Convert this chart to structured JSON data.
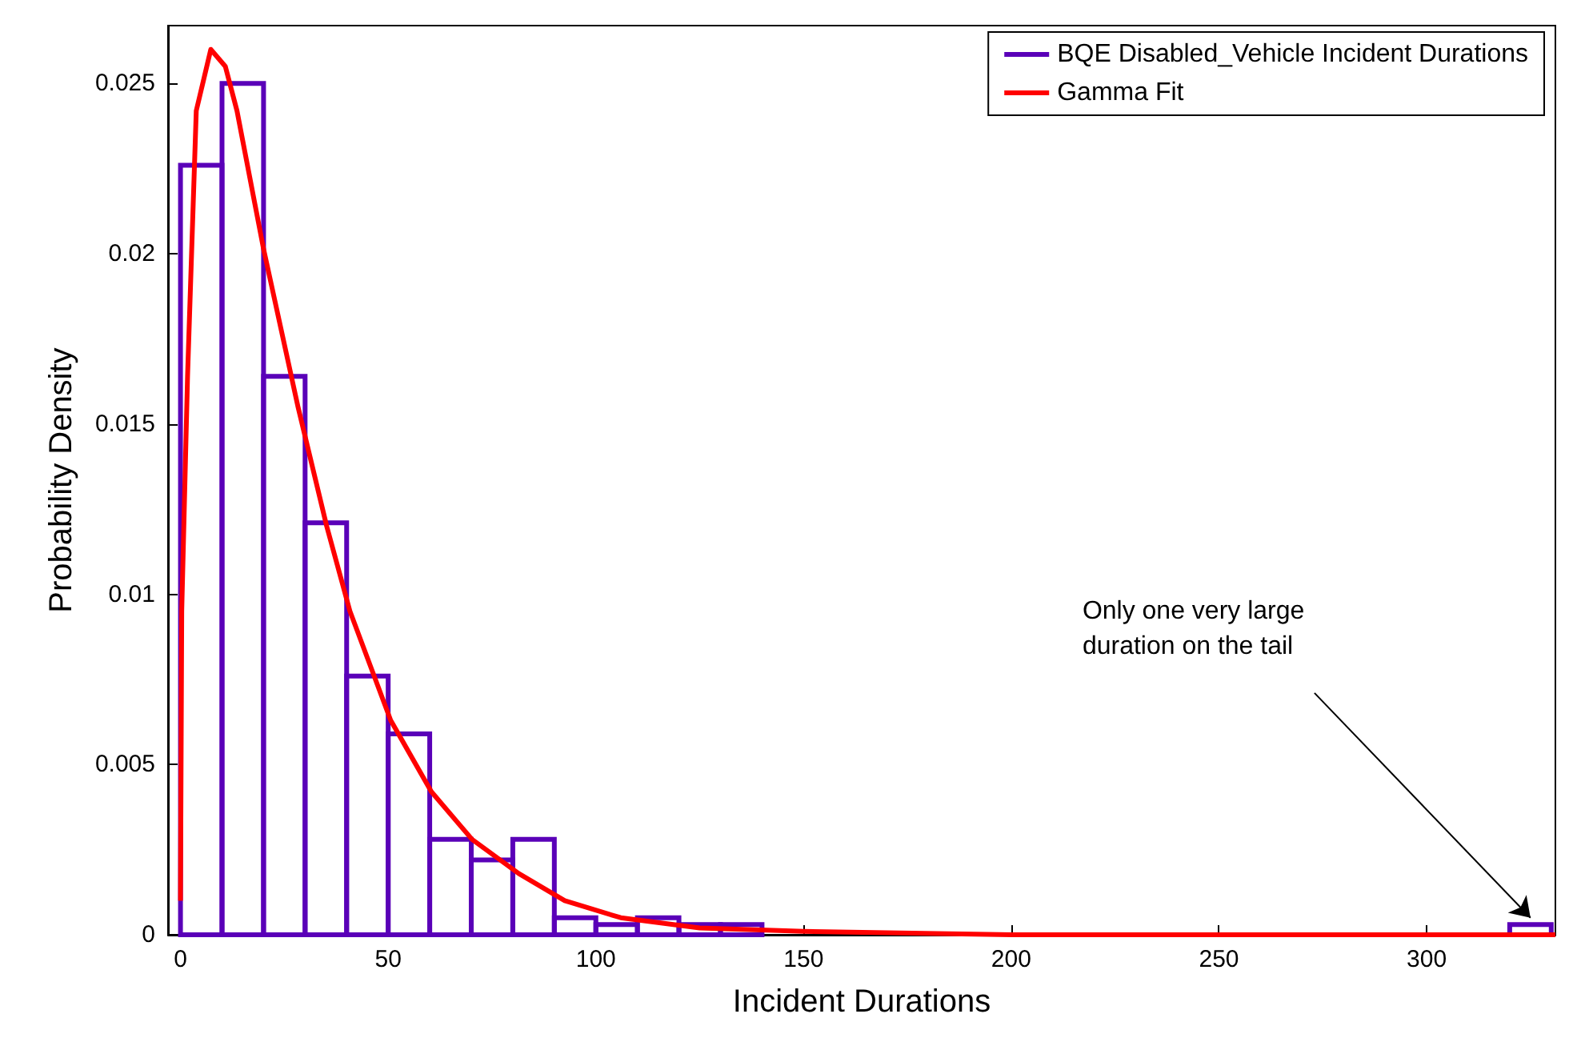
{
  "chart_data": {
    "type": "histogram",
    "xlabel": "Incident Durations",
    "ylabel": "Probability Density",
    "bins": [
      0,
      10,
      20,
      30,
      40,
      50,
      60,
      70,
      80,
      90,
      100,
      110,
      120,
      130,
      140,
      150,
      160,
      170,
      180,
      190,
      200,
      210,
      220,
      230,
      240,
      250,
      260,
      270,
      280,
      290,
      300,
      310,
      320,
      330
    ],
    "series": [
      {
        "name": "BQE Disabled_Vehicle Incident Durations",
        "color": "#5a00b8",
        "values": [
          0.0226,
          0.025,
          0.0164,
          0.0121,
          0.0076,
          0.0059,
          0.0028,
          0.0022,
          0.0028,
          0.0005,
          0.0003,
          0.0005,
          0.0003,
          0.0003,
          0,
          0,
          0,
          0,
          0,
          0,
          0,
          0,
          0,
          0,
          0,
          0,
          0,
          0,
          0,
          0,
          0,
          0,
          0.0003
        ]
      },
      {
        "type": "line",
        "name": "Gamma Fit",
        "color": "#ff0000",
        "x": [
          0,
          0.3,
          1.7,
          3.8,
          7.3,
          10.8,
          13.6,
          19.9,
          28.3,
          35.2,
          40.8,
          50.6,
          60.4,
          70.2,
          81.4,
          92.5,
          106,
          125,
          150,
          200,
          250,
          331
        ],
        "values": [
          0.001,
          0.0095,
          0.0164,
          0.0242,
          0.026,
          0.0255,
          0.0242,
          0.0202,
          0.0155,
          0.012,
          0.0095,
          0.0063,
          0.0042,
          0.0028,
          0.0018,
          0.001,
          0.0005,
          0.0002,
          0.0001,
          0,
          0,
          0
        ]
      }
    ],
    "xlim": [
      -3,
      331
    ],
    "ylim": [
      0,
      0.0267
    ],
    "xticks": [
      0,
      50,
      100,
      150,
      200,
      250,
      300
    ],
    "yticks": [
      0,
      0.005,
      0.01,
      0.015,
      0.02,
      0.025
    ],
    "grid": false,
    "legend": "top right",
    "marker": "none",
    "line_style": "solid",
    "annotations": [
      "Only one very large duration on the tail"
    ]
  }
}
